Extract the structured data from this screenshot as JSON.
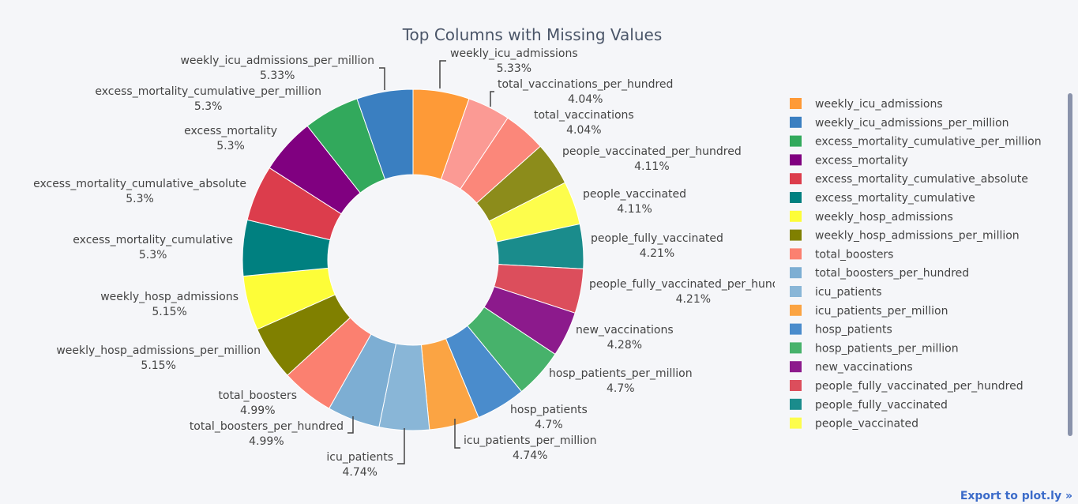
{
  "chart_data": {
    "type": "pie",
    "title": "Top Columns with Missing Values",
    "hole": 0.5,
    "slices": [
      {
        "label": "weekly_icu_admissions",
        "value": 5.33,
        "pct": "5.33%",
        "color": "#fe9a37"
      },
      {
        "label": "total_vaccinations_per_hundred",
        "value": 4.04,
        "pct": "4.04%",
        "color": "#fb9a94"
      },
      {
        "label": "total_vaccinations",
        "value": 4.04,
        "pct": "4.04%",
        "color": "#fb877a"
      },
      {
        "label": "people_vaccinated_per_hundred",
        "value": 4.11,
        "pct": "4.11%",
        "color": "#8c8c1b"
      },
      {
        "label": "people_vaccinated",
        "value": 4.11,
        "pct": "4.11%",
        "color": "#fdfd4c"
      },
      {
        "label": "people_fully_vaccinated",
        "value": 4.21,
        "pct": "4.21%",
        "color": "#1a8c8c"
      },
      {
        "label": "people_fully_vaccinated_per_hundred",
        "value": 4.21,
        "pct": "4.21%",
        "color": "#dc4e5c"
      },
      {
        "label": "new_vaccinations",
        "value": 4.28,
        "pct": "4.28%",
        "color": "#8c1a8c"
      },
      {
        "label": "hosp_patients_per_million",
        "value": 4.7,
        "pct": "4.7%",
        "color": "#47b26b"
      },
      {
        "label": "hosp_patients",
        "value": 4.7,
        "pct": "4.7%",
        "color": "#4a8ccc"
      },
      {
        "label": "icu_patients_per_million",
        "value": 4.74,
        "pct": "4.74%",
        "color": "#fba443"
      },
      {
        "label": "icu_patients",
        "value": 4.74,
        "pct": "4.74%",
        "color": "#89b6d7"
      },
      {
        "label": "total_boosters_per_hundred",
        "value": 4.99,
        "pct": "4.99%",
        "color": "#7daed3"
      },
      {
        "label": "total_boosters",
        "value": 4.99,
        "pct": "4.99%",
        "color": "#fb8070"
      },
      {
        "label": "weekly_hosp_admissions_per_million",
        "value": 5.15,
        "pct": "5.15%",
        "color": "#808000"
      },
      {
        "label": "weekly_hosp_admissions",
        "value": 5.15,
        "pct": "5.15%",
        "color": "#fdfd38"
      },
      {
        "label": "excess_mortality_cumulative",
        "value": 5.3,
        "pct": "5.3%",
        "color": "#008080"
      },
      {
        "label": "excess_mortality_cumulative_absolute",
        "value": 5.3,
        "pct": "5.3%",
        "color": "#dc3d4c"
      },
      {
        "label": "excess_mortality",
        "value": 5.3,
        "pct": "5.3%",
        "color": "#800080"
      },
      {
        "label": "excess_mortality_cumulative_per_million",
        "value": 5.3,
        "pct": "5.3%",
        "color": "#32a95c"
      },
      {
        "label": "weekly_icu_admissions_per_million",
        "value": 5.33,
        "pct": "5.33%",
        "color": "#3a7fc1"
      }
    ],
    "legend": {
      "placement": "right",
      "entries": [
        {
          "label": "weekly_icu_admissions",
          "color": "#fe9a37"
        },
        {
          "label": "weekly_icu_admissions_per_million",
          "color": "#3a7fc1"
        },
        {
          "label": "excess_mortality_cumulative_per_million",
          "color": "#32a95c"
        },
        {
          "label": "excess_mortality",
          "color": "#800080"
        },
        {
          "label": "excess_mortality_cumulative_absolute",
          "color": "#dc3d4c"
        },
        {
          "label": "excess_mortality_cumulative",
          "color": "#008080"
        },
        {
          "label": "weekly_hosp_admissions",
          "color": "#fdfd38"
        },
        {
          "label": "weekly_hosp_admissions_per_million",
          "color": "#808000"
        },
        {
          "label": "total_boosters",
          "color": "#fb8070"
        },
        {
          "label": "total_boosters_per_hundred",
          "color": "#7daed3"
        },
        {
          "label": "icu_patients",
          "color": "#89b6d7"
        },
        {
          "label": "icu_patients_per_million",
          "color": "#fba443"
        },
        {
          "label": "hosp_patients",
          "color": "#4a8ccc"
        },
        {
          "label": "hosp_patients_per_million",
          "color": "#47b26b"
        },
        {
          "label": "new_vaccinations",
          "color": "#8c1a8c"
        },
        {
          "label": "people_fully_vaccinated_per_hundred",
          "color": "#dc4e5c"
        },
        {
          "label": "people_fully_vaccinated",
          "color": "#1a8c8c"
        },
        {
          "label": "people_vaccinated",
          "color": "#fdfd4c"
        }
      ]
    }
  },
  "ui": {
    "export_link": "Export to plot.ly »"
  }
}
